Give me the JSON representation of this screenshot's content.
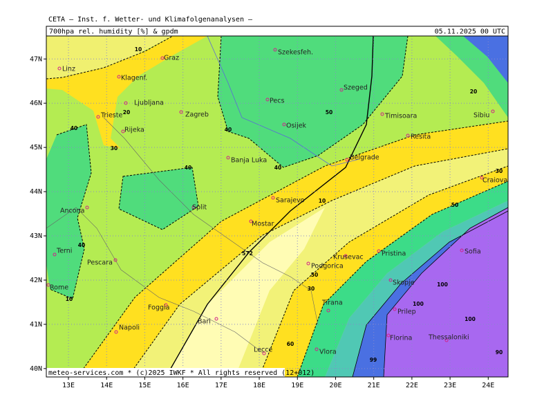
{
  "header": {
    "institute": "CETA — Inst. f. Wetter- und Klimafolgenanalysen —",
    "title": "700hpa rel. humidity [%] & gpdm",
    "date": "05.11.2025 00 UTC",
    "footer": "meteo-services.com * (c)2025 IWKF * All rights reserved (12+012)"
  },
  "map": {
    "xlim": [
      12.42,
      24.52
    ],
    "ylim": [
      39.81,
      47.52
    ],
    "xticks": [
      {
        "value": 13,
        "label": "13E"
      },
      {
        "value": 14,
        "label": "14E"
      },
      {
        "value": 15,
        "label": "15E"
      },
      {
        "value": 16,
        "label": "16E"
      },
      {
        "value": 17,
        "label": "17E"
      },
      {
        "value": 18,
        "label": "18E"
      },
      {
        "value": 19,
        "label": "19E"
      },
      {
        "value": 20,
        "label": "20E"
      },
      {
        "value": 21,
        "label": "21E"
      },
      {
        "value": 22,
        "label": "22E"
      },
      {
        "value": 23,
        "label": "23E"
      },
      {
        "value": 24,
        "label": "24E"
      }
    ],
    "yticks": [
      {
        "value": 40,
        "label": "40N"
      },
      {
        "value": 41,
        "label": "41N"
      },
      {
        "value": 42,
        "label": "42N"
      },
      {
        "value": 43,
        "label": "43N"
      },
      {
        "value": 44,
        "label": "44N"
      },
      {
        "value": 45,
        "label": "45N"
      },
      {
        "value": 46,
        "label": "46N"
      },
      {
        "value": 47,
        "label": "47N"
      }
    ],
    "cities": [
      "Linz",
      "Graz",
      "Szekesfeh.",
      "Klagenf.",
      "Ljubljana",
      "Zagreb",
      "Pecs",
      "Szeged",
      "Trieste",
      "Rijeka",
      "Osijek",
      "Timisoara",
      "Sibiu",
      "Resita",
      "Belgrade",
      "Banja Luka",
      "Sarajevo",
      "Split",
      "Ancona",
      "Mostar",
      "Craiova",
      "Terni",
      "Pescara",
      "Pristina",
      "Krusevac",
      "Podgorica",
      "Sofia",
      "Skopje",
      "Rome",
      "Foggia",
      "Prilep",
      "Tirana",
      "Bari",
      "Napoli",
      "Thessaloniki",
      "Florina",
      "Lecce",
      "Vlora"
    ],
    "contour_labels": [
      10,
      20,
      30,
      40,
      40,
      40,
      10,
      40,
      40,
      50,
      10,
      50,
      30,
      60,
      90,
      99,
      100,
      100,
      100,
      20,
      30,
      50,
      572
    ]
  }
}
